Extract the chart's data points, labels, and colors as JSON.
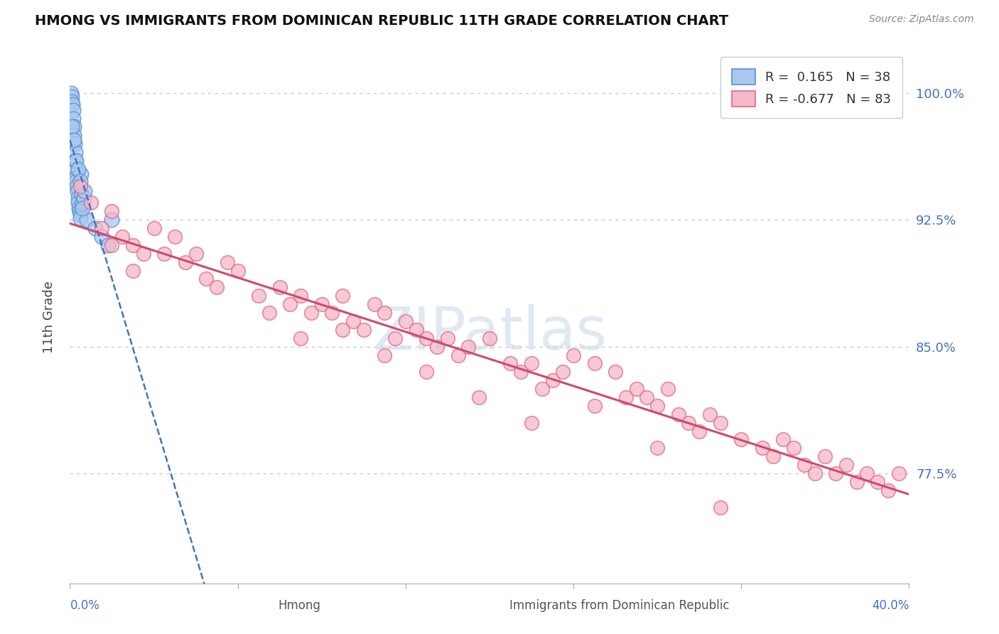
{
  "title": "HMONG VS IMMIGRANTS FROM DOMINICAN REPUBLIC 11TH GRADE CORRELATION CHART",
  "source_text": "Source: ZipAtlas.com",
  "ylabel": "11th Grade",
  "xmin": 0.0,
  "xmax": 40.0,
  "ymin": 71.0,
  "ymax": 102.5,
  "yticks": [
    77.5,
    85.0,
    92.5,
    100.0
  ],
  "ytick_labels": [
    "77.5%",
    "85.0%",
    "92.5%",
    "100.0%"
  ],
  "gridline_color": "#c8c8c8",
  "blue_color": "#a8c8f0",
  "pink_color": "#f5b8c8",
  "blue_edge": "#5a90d0",
  "pink_edge": "#e06888",
  "trend_blue_color": "#4472c4",
  "trend_pink_color": "#d04870",
  "R_blue": 0.165,
  "N_blue": 38,
  "R_pink": -0.677,
  "N_pink": 83,
  "legend_label_blue": "R =  0.165   N = 38",
  "legend_label_pink": "R = -0.677   N = 83",
  "bottom_label_blue": "Hmong",
  "bottom_label_pink": "Immigrants from Dominican Republic",
  "xlim_label_left": "0.0%",
  "xlim_label_right": "40.0%",
  "blue_x": [
    0.05,
    0.08,
    0.1,
    0.12,
    0.15,
    0.15,
    0.18,
    0.2,
    0.22,
    0.25,
    0.25,
    0.28,
    0.3,
    0.3,
    0.32,
    0.35,
    0.38,
    0.4,
    0.42,
    0.45,
    0.48,
    0.5,
    0.52,
    0.55,
    0.6,
    0.65,
    0.7,
    0.8,
    0.1,
    0.2,
    0.3,
    0.4,
    0.5,
    0.6,
    1.2,
    1.5,
    1.8,
    2.0
  ],
  "blue_y": [
    100.0,
    99.8,
    99.5,
    99.3,
    99.0,
    98.5,
    98.0,
    97.5,
    97.0,
    96.5,
    96.0,
    95.5,
    95.0,
    94.8,
    94.5,
    94.2,
    93.8,
    93.5,
    93.2,
    93.0,
    92.8,
    92.6,
    95.2,
    94.0,
    93.5,
    93.8,
    94.2,
    92.5,
    98.0,
    97.2,
    96.0,
    95.5,
    94.8,
    93.2,
    92.0,
    91.5,
    91.0,
    92.5
  ],
  "pink_x": [
    0.5,
    1.0,
    1.5,
    2.0,
    2.5,
    3.0,
    3.5,
    4.0,
    5.0,
    5.5,
    6.0,
    6.5,
    7.5,
    8.0,
    9.0,
    10.0,
    10.5,
    11.0,
    11.5,
    12.0,
    12.5,
    13.0,
    13.5,
    14.0,
    14.5,
    15.0,
    15.5,
    16.0,
    16.5,
    17.0,
    17.5,
    18.0,
    18.5,
    19.0,
    20.0,
    21.0,
    21.5,
    22.0,
    22.5,
    23.0,
    23.5,
    24.0,
    25.0,
    26.0,
    26.5,
    27.0,
    27.5,
    28.0,
    28.5,
    29.0,
    29.5,
    30.0,
    30.5,
    31.0,
    32.0,
    33.0,
    33.5,
    34.0,
    34.5,
    35.0,
    35.5,
    36.0,
    36.5,
    37.0,
    37.5,
    38.0,
    38.5,
    39.0,
    39.5,
    2.0,
    3.0,
    4.5,
    7.0,
    9.5,
    11.0,
    13.0,
    15.0,
    17.0,
    19.5,
    22.0,
    25.0,
    28.0,
    31.0
  ],
  "pink_y": [
    94.5,
    93.5,
    92.0,
    93.0,
    91.5,
    91.0,
    90.5,
    92.0,
    91.5,
    90.0,
    90.5,
    89.0,
    90.0,
    89.5,
    88.0,
    88.5,
    87.5,
    88.0,
    87.0,
    87.5,
    87.0,
    88.0,
    86.5,
    86.0,
    87.5,
    87.0,
    85.5,
    86.5,
    86.0,
    85.5,
    85.0,
    85.5,
    84.5,
    85.0,
    85.5,
    84.0,
    83.5,
    84.0,
    82.5,
    83.0,
    83.5,
    84.5,
    84.0,
    83.5,
    82.0,
    82.5,
    82.0,
    81.5,
    82.5,
    81.0,
    80.5,
    80.0,
    81.0,
    80.5,
    79.5,
    79.0,
    78.5,
    79.5,
    79.0,
    78.0,
    77.5,
    78.5,
    77.5,
    78.0,
    77.0,
    77.5,
    77.0,
    76.5,
    77.5,
    91.0,
    89.5,
    90.5,
    88.5,
    87.0,
    85.5,
    86.0,
    84.5,
    83.5,
    82.0,
    80.5,
    81.5,
    79.0,
    75.5
  ]
}
